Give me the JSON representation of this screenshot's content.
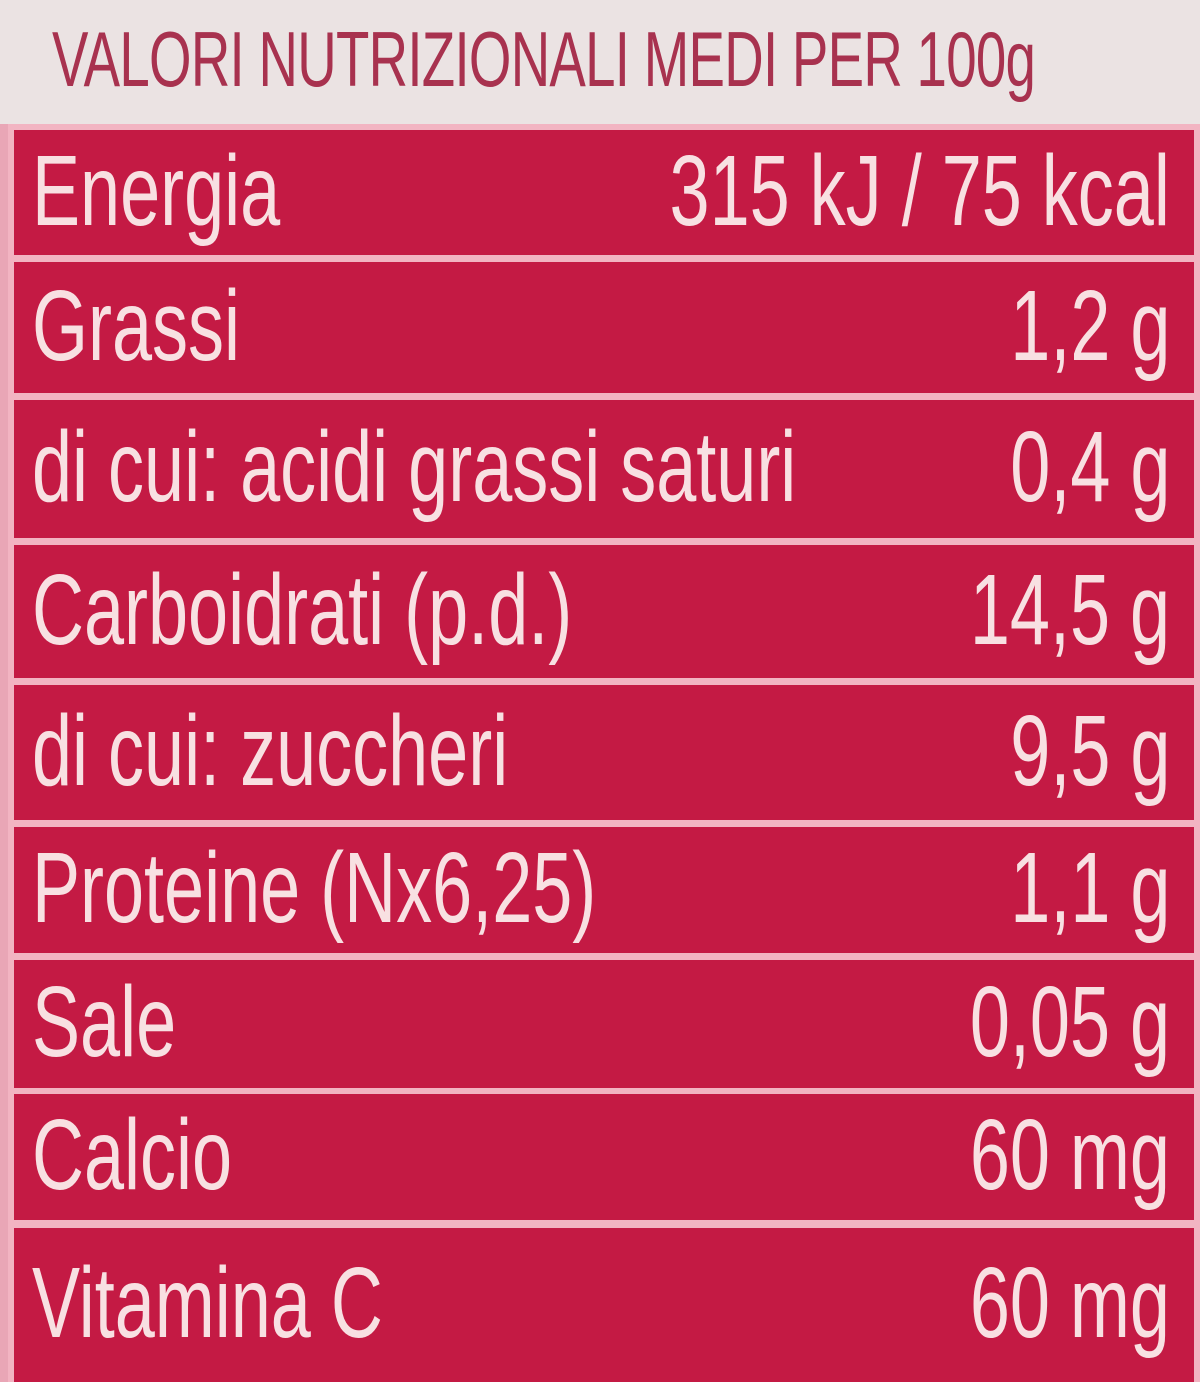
{
  "title": "VALORI NUTRIZIONALI MEDI PER 100g",
  "rows": [
    {
      "label": "Energia",
      "value": "315 kJ / 75 kcal"
    },
    {
      "label": "Grassi",
      "value": "1,2 g"
    },
    {
      "label": "di cui: acidi grassi saturi",
      "value": "0,4 g"
    },
    {
      "label": "Carboidrati (p.d.)",
      "value": "14,5 g"
    },
    {
      "label": "di cui: zuccheri",
      "value": "9,5 g"
    },
    {
      "label": "Proteine (Nx6,25)",
      "value": "1,1 g"
    },
    {
      "label": "Sale",
      "value": "0,05 g"
    },
    {
      "label": "Calcio",
      "value": "60 mg"
    },
    {
      "label": "Vitamina C",
      "value": "60 mg"
    }
  ],
  "colors": {
    "header_bg": "#ebe3e3",
    "header_text": "#a8324f",
    "row_bg": "#c41a44",
    "row_text": "#f8e0e2",
    "divider": "#f2b4c2"
  }
}
